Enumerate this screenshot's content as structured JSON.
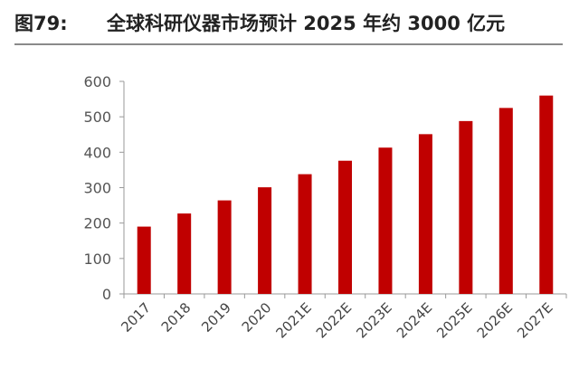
{
  "figure": {
    "label": "图79:",
    "title": "全球科研仪器市场预计 2025 年约 3000 亿元"
  },
  "chart_data": {
    "type": "bar",
    "categories": [
      "2017",
      "2018",
      "2019",
      "2020",
      "2021E",
      "2022E",
      "2023E",
      "2024E",
      "2025E",
      "2026E",
      "2027E"
    ],
    "values": [
      190,
      227,
      264,
      301,
      338,
      376,
      413,
      451,
      488,
      525,
      560
    ],
    "ylim": [
      0,
      600
    ],
    "yticks": [
      0,
      100,
      200,
      300,
      400,
      500,
      600
    ],
    "grid": false,
    "bar_color": "#c00000"
  }
}
